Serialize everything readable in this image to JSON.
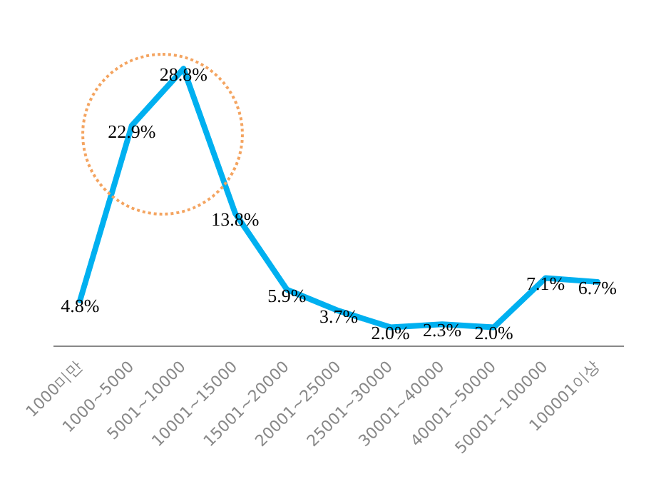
{
  "chart_data": {
    "type": "line",
    "categories": [
      "1000미만",
      "1000~5000",
      "5001~10000",
      "10001~15000",
      "15001~20000",
      "20001~25000",
      "25001~30000",
      "30001~40000",
      "40001~50000",
      "50001~100000",
      "100001이상"
    ],
    "series": [
      {
        "color": "#00b0f0",
        "values": [
          4.8,
          22.9,
          28.8,
          13.8,
          5.9,
          3.7,
          2.0,
          2.3,
          2.0,
          7.1,
          6.7
        ],
        "value_labels": [
          "4.8%",
          "22.9%",
          "28.8%",
          "13.8%",
          "5.9%",
          "3.7%",
          "2.0%",
          "2.3%",
          "2.0%",
          "7.1%",
          "6.7%"
        ]
      }
    ],
    "grid": false,
    "legend": false,
    "marker": "none",
    "line_style": "solid",
    "tick_labels": "x"
  }
}
